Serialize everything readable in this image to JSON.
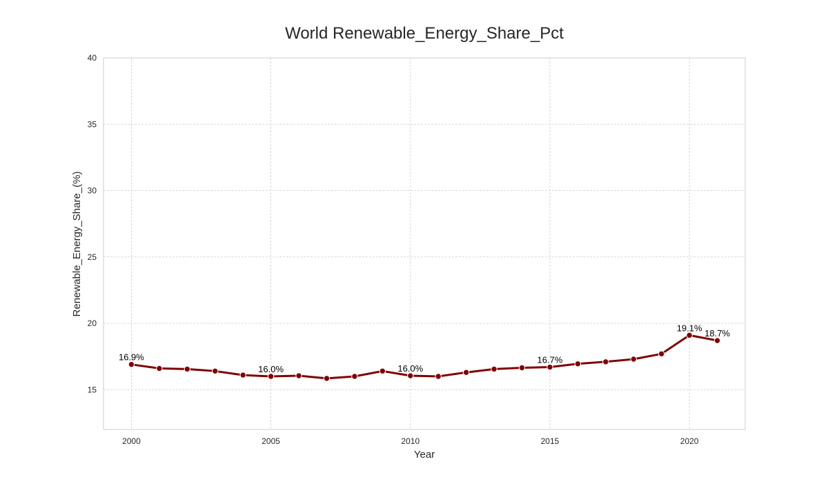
{
  "chart_data": {
    "type": "line",
    "title": "World Renewable_Energy_Share_Pct",
    "xlabel": "Year",
    "ylabel": "Renewable_Energy_Share_(%)",
    "xlim": [
      1999,
      2022
    ],
    "ylim": [
      12,
      40
    ],
    "x_ticks": [
      2000,
      2005,
      2010,
      2015,
      2020
    ],
    "y_ticks": [
      15,
      20,
      25,
      30,
      35,
      40
    ],
    "grid": true,
    "colors": {
      "line": "#800000",
      "marker_fill": "#800000",
      "marker_edge": "#ffffff",
      "grid": "#cccccc",
      "frame": "#cccccc",
      "text": "#262626",
      "label_text": "#000000"
    },
    "series": [
      {
        "x": [
          2000,
          2001,
          2002,
          2003,
          2004,
          2005,
          2006,
          2007,
          2008,
          2009,
          2010,
          2011,
          2012,
          2013,
          2014,
          2015,
          2016,
          2017,
          2018,
          2019,
          2020,
          2021
        ],
        "values": [
          16.9,
          16.6,
          16.55,
          16.4,
          16.1,
          16.0,
          16.05,
          15.85,
          16.0,
          16.4,
          16.05,
          16.0,
          16.3,
          16.55,
          16.65,
          16.7,
          16.95,
          17.1,
          17.3,
          17.7,
          19.1,
          18.7
        ]
      }
    ],
    "annotations": [
      {
        "x": 2000,
        "y": 16.9,
        "text": "16.9%"
      },
      {
        "x": 2005,
        "y": 16.0,
        "text": "16.0%"
      },
      {
        "x": 2010,
        "y": 16.05,
        "text": "16.0%"
      },
      {
        "x": 2015,
        "y": 16.7,
        "text": "16.7%"
      },
      {
        "x": 2020,
        "y": 19.1,
        "text": "19.1%"
      },
      {
        "x": 2021,
        "y": 18.7,
        "text": "18.7%"
      }
    ]
  }
}
